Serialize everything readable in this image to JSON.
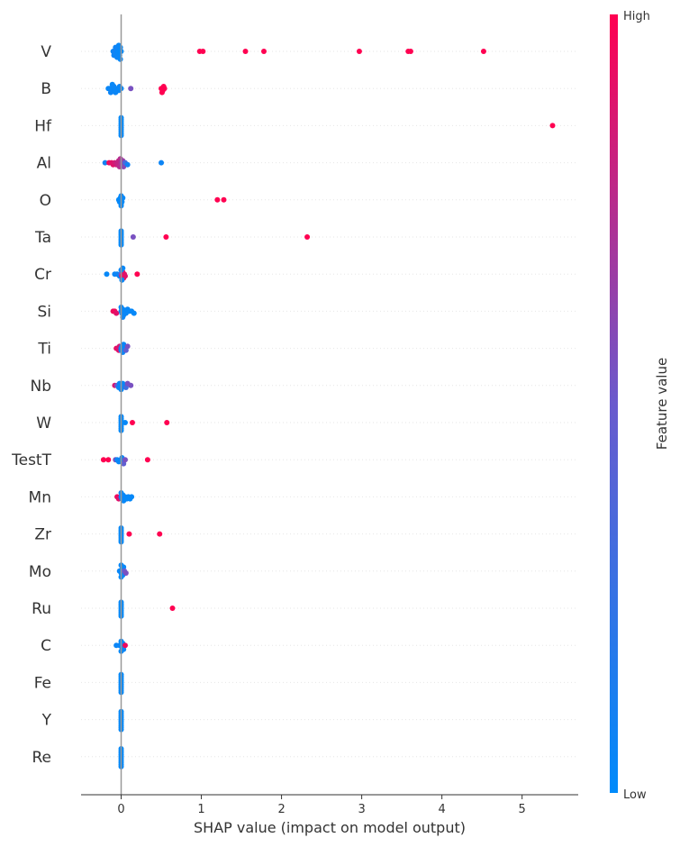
{
  "chart_data": {
    "type": "scatter",
    "title": "",
    "xlabel": "SHAP value (impact on model output)",
    "ylabel": "",
    "xlim": [
      -0.5,
      5.7
    ],
    "x_ticks": [
      "0",
      "1",
      "2",
      "3",
      "4",
      "5"
    ],
    "features": [
      {
        "name": "V",
        "points": [
          [
            -0.1,
            0.05
          ],
          [
            -0.08,
            0.1
          ],
          [
            -0.07,
            0.08
          ],
          [
            -0.06,
            0.05
          ],
          [
            -0.05,
            0.04
          ],
          [
            -0.04,
            0.03
          ],
          [
            -0.03,
            0.03
          ],
          [
            -0.02,
            0.02
          ],
          [
            -0.01,
            0.02
          ],
          [
            0.0,
            0.02
          ],
          [
            -0.09,
            0.06
          ],
          [
            -0.07,
            0.07
          ],
          [
            -0.05,
            0.05
          ],
          [
            -0.03,
            0.04
          ],
          [
            -0.01,
            0.03
          ],
          [
            0.98,
            1.0
          ],
          [
            1.02,
            1.0
          ],
          [
            1.55,
            1.0
          ],
          [
            1.78,
            1.0
          ],
          [
            2.97,
            1.0
          ],
          [
            3.58,
            1.0
          ],
          [
            3.61,
            1.0
          ],
          [
            4.52,
            1.0
          ]
        ]
      },
      {
        "name": "B",
        "points": [
          [
            -0.16,
            0.03
          ],
          [
            -0.14,
            0.05
          ],
          [
            -0.12,
            0.05
          ],
          [
            -0.1,
            0.04
          ],
          [
            -0.08,
            0.04
          ],
          [
            -0.06,
            0.05
          ],
          [
            -0.04,
            0.04
          ],
          [
            -0.03,
            0.04
          ],
          [
            -0.02,
            0.05
          ],
          [
            0.0,
            0.04
          ],
          [
            -0.13,
            0.06
          ],
          [
            -0.11,
            0.04
          ],
          [
            -0.09,
            0.05
          ],
          [
            -0.07,
            0.05
          ],
          [
            0.12,
            0.55
          ],
          [
            0.5,
            1.0
          ],
          [
            0.52,
            1.0
          ],
          [
            0.53,
            1.0
          ],
          [
            0.51,
            1.0
          ],
          [
            0.54,
            1.0
          ]
        ]
      },
      {
        "name": "Hf",
        "points": [
          [
            0.0,
            0.02
          ],
          [
            0.0,
            0.03
          ],
          [
            0.0,
            0.02
          ],
          [
            0.0,
            0.03
          ],
          [
            0.0,
            0.02
          ],
          [
            0.0,
            0.03
          ],
          [
            0.0,
            0.02
          ],
          [
            0.0,
            0.02
          ],
          [
            0.0,
            0.02
          ],
          [
            0.0,
            0.03
          ],
          [
            5.38,
            1.0
          ]
        ]
      },
      {
        "name": "Al",
        "points": [
          [
            -0.2,
            0.1
          ],
          [
            -0.15,
            0.95
          ],
          [
            -0.12,
            0.9
          ],
          [
            -0.1,
            0.9
          ],
          [
            -0.08,
            0.85
          ],
          [
            -0.06,
            0.85
          ],
          [
            -0.05,
            0.8
          ],
          [
            -0.04,
            0.8
          ],
          [
            -0.03,
            0.8
          ],
          [
            -0.02,
            0.75
          ],
          [
            -0.01,
            0.75
          ],
          [
            0.0,
            0.7
          ],
          [
            0.01,
            0.7
          ],
          [
            0.02,
            0.65
          ],
          [
            0.03,
            0.6
          ],
          [
            0.05,
            0.35
          ],
          [
            0.08,
            0.08
          ],
          [
            0.5,
            0.06
          ]
        ]
      },
      {
        "name": "O",
        "points": [
          [
            -0.03,
            0.02
          ],
          [
            -0.02,
            0.03
          ],
          [
            -0.01,
            0.02
          ],
          [
            0.0,
            0.02
          ],
          [
            0.01,
            0.03
          ],
          [
            0.02,
            0.02
          ],
          [
            0.0,
            0.02
          ],
          [
            0.0,
            0.03
          ],
          [
            0.0,
            0.02
          ],
          [
            1.2,
            1.0
          ],
          [
            1.28,
            1.0
          ]
        ]
      },
      {
        "name": "Ta",
        "points": [
          [
            0.0,
            0.02
          ],
          [
            0.0,
            0.03
          ],
          [
            0.0,
            0.02
          ],
          [
            0.0,
            0.03
          ],
          [
            0.0,
            0.02
          ],
          [
            0.0,
            0.02
          ],
          [
            0.0,
            0.03
          ],
          [
            0.0,
            0.02
          ],
          [
            0.15,
            0.55
          ],
          [
            0.56,
            1.0
          ],
          [
            2.32,
            1.0
          ]
        ]
      },
      {
        "name": "Cr",
        "points": [
          [
            -0.18,
            0.03
          ],
          [
            -0.08,
            0.05
          ],
          [
            -0.05,
            0.06
          ],
          [
            -0.02,
            0.05
          ],
          [
            0.0,
            0.5
          ],
          [
            0.01,
            0.95
          ],
          [
            0.02,
            0.95
          ],
          [
            0.03,
            0.95
          ],
          [
            0.04,
            0.9
          ],
          [
            0.05,
            0.9
          ],
          [
            0.0,
            0.03
          ],
          [
            0.01,
            0.04
          ],
          [
            0.02,
            0.03
          ],
          [
            0.2,
            1.0
          ]
        ]
      },
      {
        "name": "Si",
        "points": [
          [
            -0.1,
            0.95
          ],
          [
            -0.08,
            0.95
          ],
          [
            -0.06,
            0.9
          ],
          [
            0.0,
            0.05
          ],
          [
            0.01,
            0.05
          ],
          [
            0.02,
            0.04
          ],
          [
            0.03,
            0.05
          ],
          [
            0.04,
            0.04
          ],
          [
            0.06,
            0.04
          ],
          [
            0.08,
            0.04
          ],
          [
            0.1,
            0.03
          ],
          [
            0.13,
            0.03
          ],
          [
            0.16,
            0.03
          ],
          [
            0.0,
            0.03
          ],
          [
            0.02,
            0.05
          ]
        ]
      },
      {
        "name": "Ti",
        "points": [
          [
            -0.06,
            0.95
          ],
          [
            -0.05,
            0.9
          ],
          [
            -0.03,
            0.9
          ],
          [
            -0.02,
            0.85
          ],
          [
            0.0,
            0.05
          ],
          [
            0.0,
            0.03
          ],
          [
            0.01,
            0.04
          ],
          [
            0.02,
            0.05
          ],
          [
            0.03,
            0.04
          ],
          [
            0.05,
            0.03
          ],
          [
            0.06,
            0.45
          ],
          [
            0.08,
            0.55
          ]
        ]
      },
      {
        "name": "Nb",
        "points": [
          [
            -0.08,
            0.85
          ],
          [
            -0.05,
            0.5
          ],
          [
            -0.03,
            0.05
          ],
          [
            -0.02,
            0.04
          ],
          [
            0.0,
            0.03
          ],
          [
            0.01,
            0.05
          ],
          [
            0.02,
            0.04
          ],
          [
            0.04,
            0.05
          ],
          [
            0.06,
            0.3
          ],
          [
            0.08,
            0.55
          ],
          [
            0.12,
            0.55
          ],
          [
            0.0,
            0.04
          ]
        ]
      },
      {
        "name": "W",
        "points": [
          [
            0.0,
            0.02
          ],
          [
            0.0,
            0.03
          ],
          [
            0.0,
            0.02
          ],
          [
            0.0,
            0.03
          ],
          [
            0.0,
            0.02
          ],
          [
            0.0,
            0.02
          ],
          [
            0.0,
            0.03
          ],
          [
            0.0,
            0.02
          ],
          [
            0.05,
            0.03
          ],
          [
            0.14,
            1.0
          ],
          [
            0.57,
            1.0
          ]
        ]
      },
      {
        "name": "TestT",
        "points": [
          [
            -0.22,
            1.0
          ],
          [
            -0.16,
            1.0
          ],
          [
            -0.07,
            0.55
          ],
          [
            -0.05,
            0.05
          ],
          [
            -0.03,
            0.04
          ],
          [
            0.0,
            0.04
          ],
          [
            0.0,
            0.03
          ],
          [
            0.01,
            0.05
          ],
          [
            0.03,
            0.45
          ],
          [
            0.05,
            0.55
          ],
          [
            0.33,
            1.0
          ]
        ]
      },
      {
        "name": "Mn",
        "points": [
          [
            -0.05,
            0.95
          ],
          [
            -0.03,
            0.9
          ],
          [
            0.0,
            0.03
          ],
          [
            0.01,
            0.04
          ],
          [
            0.02,
            0.05
          ],
          [
            0.03,
            0.04
          ],
          [
            0.05,
            0.04
          ],
          [
            0.07,
            0.03
          ],
          [
            0.09,
            0.03
          ],
          [
            0.11,
            0.03
          ],
          [
            0.13,
            0.03
          ],
          [
            0.0,
            0.03
          ]
        ]
      },
      {
        "name": "Zr",
        "points": [
          [
            0.0,
            0.02
          ],
          [
            0.0,
            0.03
          ],
          [
            0.0,
            0.02
          ],
          [
            0.0,
            0.03
          ],
          [
            0.0,
            0.02
          ],
          [
            0.0,
            0.02
          ],
          [
            0.0,
            0.03
          ],
          [
            0.0,
            0.02
          ],
          [
            0.1,
            1.0
          ],
          [
            0.48,
            1.0
          ]
        ]
      },
      {
        "name": "Mo",
        "points": [
          [
            -0.02,
            0.05
          ],
          [
            0.0,
            0.03
          ],
          [
            0.0,
            0.03
          ],
          [
            0.01,
            0.04
          ],
          [
            0.02,
            0.05
          ],
          [
            0.03,
            0.04
          ],
          [
            0.0,
            0.02
          ],
          [
            0.0,
            0.03
          ],
          [
            0.04,
            0.5
          ],
          [
            0.06,
            0.55
          ]
        ]
      },
      {
        "name": "Ru",
        "points": [
          [
            0.0,
            0.02
          ],
          [
            0.0,
            0.03
          ],
          [
            0.0,
            0.02
          ],
          [
            0.0,
            0.03
          ],
          [
            0.0,
            0.02
          ],
          [
            0.0,
            0.02
          ],
          [
            0.0,
            0.03
          ],
          [
            0.0,
            0.02
          ],
          [
            0.64,
            1.0
          ]
        ]
      },
      {
        "name": "C",
        "points": [
          [
            -0.06,
            0.05
          ],
          [
            -0.02,
            0.05
          ],
          [
            0.0,
            0.03
          ],
          [
            0.01,
            0.04
          ],
          [
            0.02,
            0.04
          ],
          [
            0.03,
            0.05
          ],
          [
            0.0,
            0.02
          ],
          [
            0.0,
            0.03
          ],
          [
            0.05,
            0.95
          ]
        ]
      },
      {
        "name": "Fe",
        "points": [
          [
            0.0,
            0.02
          ],
          [
            0.0,
            0.03
          ],
          [
            0.0,
            0.02
          ],
          [
            0.0,
            0.03
          ],
          [
            0.0,
            0.02
          ],
          [
            0.0,
            0.02
          ],
          [
            0.0,
            0.03
          ],
          [
            0.0,
            0.02
          ],
          [
            0.0,
            0.02
          ],
          [
            0.0,
            0.03
          ]
        ]
      },
      {
        "name": "Y",
        "points": [
          [
            0.0,
            0.02
          ],
          [
            0.0,
            0.03
          ],
          [
            0.0,
            0.02
          ],
          [
            0.0,
            0.03
          ],
          [
            0.0,
            0.02
          ],
          [
            0.0,
            0.02
          ],
          [
            0.0,
            0.03
          ],
          [
            0.0,
            0.02
          ],
          [
            0.0,
            0.02
          ],
          [
            0.0,
            0.03
          ]
        ]
      },
      {
        "name": "Re",
        "points": [
          [
            0.0,
            0.02
          ],
          [
            0.0,
            0.03
          ],
          [
            0.0,
            0.02
          ],
          [
            0.0,
            0.03
          ],
          [
            0.0,
            0.02
          ],
          [
            0.0,
            0.02
          ],
          [
            0.0,
            0.03
          ],
          [
            0.0,
            0.02
          ],
          [
            0.0,
            0.02
          ],
          [
            0.0,
            0.03
          ]
        ]
      }
    ],
    "colorbar": {
      "label": "Feature value",
      "high_label": "High",
      "low_label": "Low",
      "low_color": "#008bfb",
      "high_color": "#ff0051"
    },
    "grid": false
  }
}
